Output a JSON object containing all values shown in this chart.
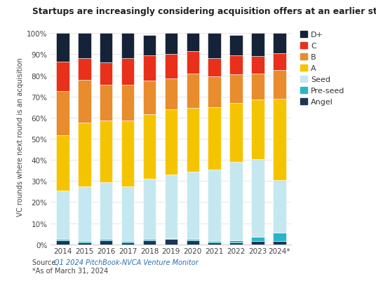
{
  "years": [
    "2014",
    "2015",
    "2016",
    "2017",
    "2018",
    "2019",
    "2020",
    "2021",
    "2022",
    "2023",
    "2024*"
  ],
  "segments": {
    "Angel": [
      2.0,
      1.0,
      2.0,
      1.0,
      2.0,
      2.5,
      2.0,
      1.0,
      1.0,
      1.5,
      1.5
    ],
    "Pre-seed": [
      0.5,
      0.5,
      0.5,
      0.5,
      0.5,
      0.5,
      0.5,
      0.5,
      1.0,
      2.0,
      4.0
    ],
    "Seed": [
      23.0,
      26.0,
      27.0,
      26.0,
      28.5,
      30.0,
      32.0,
      34.0,
      37.0,
      37.0,
      25.0
    ],
    "A": [
      26.0,
      30.0,
      29.0,
      31.0,
      30.5,
      31.0,
      30.0,
      29.5,
      28.0,
      28.0,
      38.5
    ],
    "B": [
      21.0,
      20.5,
      17.0,
      17.0,
      16.0,
      14.5,
      16.5,
      14.5,
      13.5,
      12.5,
      13.5
    ],
    "C": [
      14.0,
      10.0,
      10.5,
      12.5,
      12.0,
      11.5,
      10.5,
      8.5,
      9.0,
      8.0,
      8.0
    ],
    "D+": [
      13.5,
      12.0,
      14.0,
      12.0,
      9.5,
      10.0,
      8.5,
      12.0,
      9.5,
      11.0,
      9.5
    ]
  },
  "colors": {
    "Angel": "#1c3557",
    "Pre-seed": "#29b5c8",
    "Seed": "#c5e8f0",
    "A": "#f5c400",
    "B": "#e88c2e",
    "C": "#e8301a",
    "D+": "#152338"
  },
  "legend_order": [
    "D+",
    "C",
    "B",
    "A",
    "Seed",
    "Pre-seed",
    "Angel"
  ],
  "title": "Startups are increasingly considering acquisition offers  at an earlier stage of development",
  "ylabel": "VC rounds where next round is an acquisition",
  "source_prefix": "Source: ",
  "source_link": "Q1 2024 PitchBook-NVCA Venture Monitor",
  "footnote_text": "*As of March 31, 2024",
  "background_color": "#ffffff",
  "bar_width": 0.6
}
